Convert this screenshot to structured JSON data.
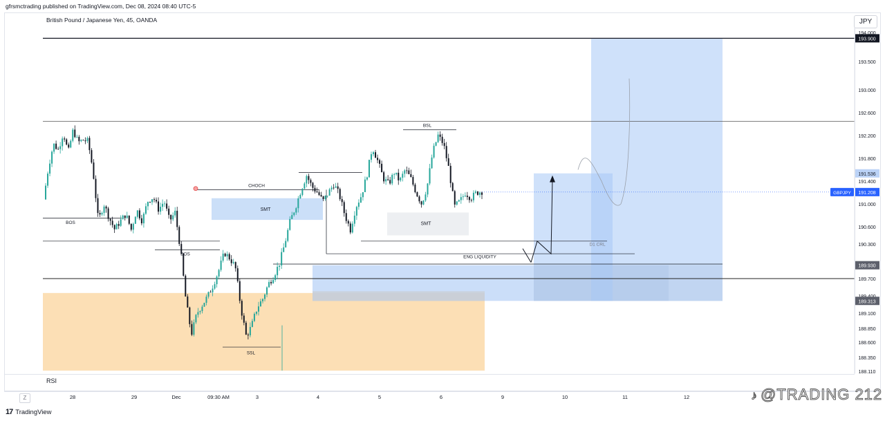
{
  "header": {
    "published_by": "gfrsmctrading published on TradingView.com, Dec 08, 2024 08:40 UTC-5"
  },
  "chart_title": "British Pound / Japanese Yen, 45, OANDA",
  "currency": "JPY",
  "footer": {
    "logo_text": "TradingView",
    "zoom_button": "Z",
    "rsi_label": "RSI"
  },
  "watermark": "@TRADING 212",
  "colors": {
    "bull": "#26a69a",
    "bear": "#131722",
    "blue_zone": "#a8c8f5",
    "orange_zone": "#fbd9a8",
    "gray_zone": "#c9ced6",
    "price_badge": "#2962ff",
    "level_badge": "#5d606b"
  },
  "chart_data": {
    "type": "candlestick",
    "symbol": "GBPJPY",
    "y_ticks": [
      "194.000",
      "193.500",
      "193.000",
      "192.600",
      "192.200",
      "191.800",
      "191.400",
      "191.000",
      "190.600",
      "190.300",
      "189.950",
      "189.700",
      "189.400",
      "189.100",
      "188.850",
      "188.600",
      "188.350",
      "188.110"
    ],
    "x_ticks": [
      "28",
      "29",
      "Dec",
      "09:30 AM",
      "3",
      "4",
      "5",
      "6",
      "9",
      "10",
      "11",
      "12"
    ],
    "price_labels": [
      {
        "symbol": "",
        "value": "193.900"
      },
      {
        "symbol": "",
        "value": "191.536"
      },
      {
        "symbol": "GBPJPY",
        "value": "191.208"
      },
      {
        "symbol": "",
        "value": "189.930"
      },
      {
        "symbol": "",
        "value": "189.313"
      }
    ],
    "annotations": [
      "BOS",
      "BOS",
      "CHOCH",
      "SMT",
      "SMT",
      "BSL",
      "SSL",
      "ENG LIQUIDITY",
      "D1 CRL"
    ],
    "close_path": [
      [
        0,
        191.08
      ],
      [
        0.9,
        191.65
      ],
      [
        1.8,
        192.05
      ],
      [
        2.7,
        191.95
      ],
      [
        3.6,
        192.25
      ],
      [
        4.5,
        191.9
      ],
      [
        5.4,
        192.3
      ],
      [
        6.3,
        192.08
      ],
      [
        7.2,
        192.12
      ],
      [
        8.1,
        192.1
      ],
      [
        9,
        191.6
      ],
      [
        10,
        190.7
      ],
      [
        11,
        191.0
      ],
      [
        12,
        190.75
      ],
      [
        13,
        190.55
      ],
      [
        14,
        190.7
      ],
      [
        15,
        190.82
      ],
      [
        16,
        190.55
      ],
      [
        17,
        190.9
      ],
      [
        18,
        190.7
      ],
      [
        19,
        191.05
      ],
      [
        20,
        191.12
      ],
      [
        21,
        190.9
      ],
      [
        22,
        191.05
      ],
      [
        23,
        190.7
      ],
      [
        24,
        190.85
      ],
      [
        25,
        190.2
      ],
      [
        26,
        189.3
      ],
      [
        27,
        188.75
      ],
      [
        28,
        189.1
      ],
      [
        29,
        189.25
      ],
      [
        30,
        189.4
      ],
      [
        31,
        189.6
      ],
      [
        32,
        189.85
      ],
      [
        33,
        190.15
      ],
      [
        34,
        190.05
      ],
      [
        35,
        189.9
      ],
      [
        36,
        189.2
      ],
      [
        37,
        188.7
      ],
      [
        38,
        188.9
      ],
      [
        39,
        189.2
      ],
      [
        40,
        189.35
      ],
      [
        41,
        189.6
      ],
      [
        42,
        189.75
      ],
      [
        43,
        189.95
      ],
      [
        44,
        190.3
      ],
      [
        45,
        190.7
      ],
      [
        46,
        190.95
      ],
      [
        47,
        191.25
      ],
      [
        48,
        191.5
      ],
      [
        49,
        191.3
      ],
      [
        50,
        191.2
      ],
      [
        51,
        191.05
      ],
      [
        52,
        191.2
      ],
      [
        53,
        191.35
      ],
      [
        54,
        191.15
      ],
      [
        55,
        190.8
      ],
      [
        56,
        190.55
      ],
      [
        57,
        190.95
      ],
      [
        58,
        191.15
      ],
      [
        59,
        191.5
      ],
      [
        60,
        192.0
      ],
      [
        61,
        191.75
      ],
      [
        62,
        191.45
      ],
      [
        63,
        191.35
      ],
      [
        64,
        191.55
      ],
      [
        65,
        191.4
      ],
      [
        66,
        191.6
      ],
      [
        67,
        191.45
      ],
      [
        68,
        191.2
      ],
      [
        69,
        191.0
      ],
      [
        70,
        191.3
      ],
      [
        71,
        191.9
      ],
      [
        72,
        192.2
      ],
      [
        73,
        192.05
      ],
      [
        74,
        191.6
      ],
      [
        75,
        190.95
      ],
      [
        76,
        191.05
      ],
      [
        77,
        191.2
      ],
      [
        78,
        191.1
      ],
      [
        79,
        191.2
      ],
      [
        80,
        191.22
      ]
    ],
    "projection_levels": {
      "target": 193.9,
      "entry_top": 191.536,
      "current": 191.208,
      "entry_bottom": 189.93,
      "stop": 189.313
    }
  }
}
